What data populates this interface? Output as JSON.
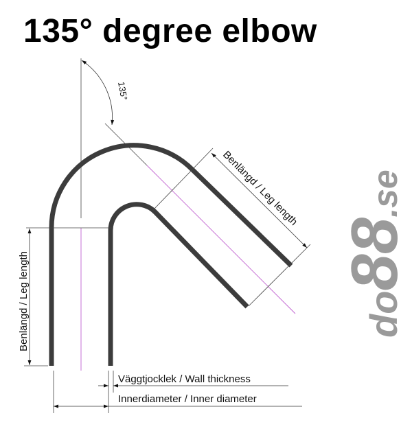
{
  "title": "135° degree elbow",
  "angle_label": "135°",
  "labels": {
    "leg_length_diagonal": "Benlängd / Leg length",
    "leg_length_vertical": "Benlängd / Leg length",
    "wall_thickness": "Väggtjocklek / Wall thickness",
    "inner_diameter": "Innerdiameter / Inner diameter"
  },
  "logo": {
    "prefix": "do",
    "number": "88",
    "suffix": ".se"
  },
  "colors": {
    "pipe": "#3c3c3c",
    "centerline": "#c060d0",
    "dim": "#333333",
    "logo": "#9a9a9a"
  }
}
